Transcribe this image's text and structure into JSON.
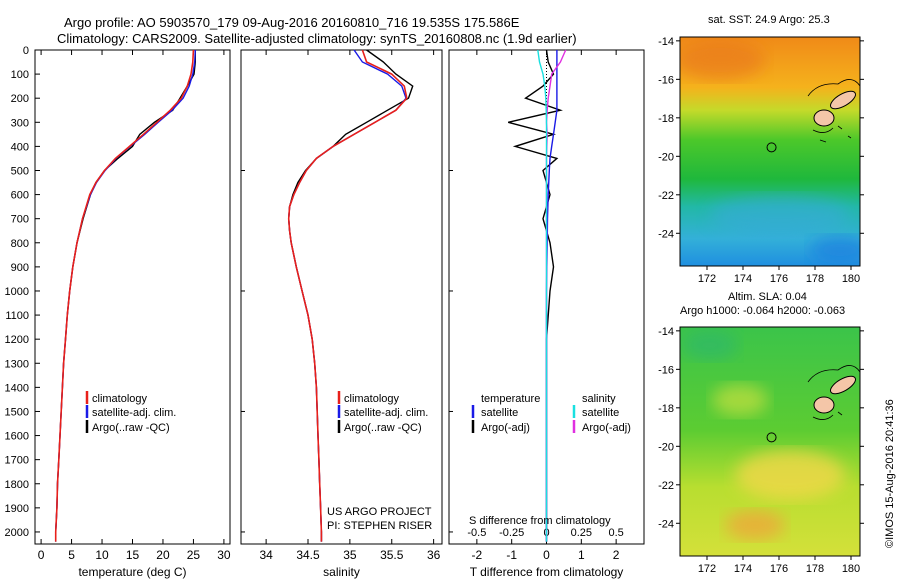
{
  "header": {
    "title_line1": "Argo profile: AO 5903570_179 09-Aug-2016 20160810_716 19.535S 175.586E",
    "title_line2": "Climatology: CARS2009. Satellite-adjusted climatology: synTS_20160808.nc (1.9d earlier)"
  },
  "credit": {
    "project": "US ARGO PROJECT",
    "pi": "PI: STEPHEN RISER",
    "stamp": "©IMOS 15-Aug-2016 20:41:36"
  },
  "colors": {
    "climatology": "#e8201b",
    "satellite": "#1a1ae6",
    "argo": "#000000",
    "sat_salinity": "#19e0e0",
    "argo_salinity": "#e030e0"
  },
  "chart_data": [
    {
      "type": "line",
      "xlabel": "temperature (deg C)",
      "ylabel": "",
      "xlim": [
        -1,
        31
      ],
      "ylim": [
        2050,
        0
      ],
      "xticks": [
        0,
        5,
        10,
        15,
        20,
        25,
        30
      ],
      "yticks": [
        0,
        100,
        200,
        300,
        400,
        500,
        600,
        700,
        800,
        900,
        1000,
        1100,
        1200,
        1300,
        1400,
        1500,
        1600,
        1700,
        1800,
        1900,
        2000
      ],
      "legend": [
        "climatology",
        "satellite-adj. clim.",
        "Argo(..raw -QC)"
      ],
      "depth": [
        0,
        50,
        100,
        150,
        200,
        250,
        300,
        350,
        400,
        450,
        500,
        550,
        600,
        700,
        800,
        900,
        1000,
        1100,
        1200,
        1300,
        1400,
        1500,
        1600,
        1700,
        1800,
        1900,
        2000,
        2040
      ],
      "series": [
        {
          "name": "climatology",
          "values": [
            25.0,
            24.9,
            24.6,
            24.0,
            23.0,
            21.2,
            19.0,
            16.8,
            14.5,
            12.2,
            10.4,
            9.0,
            8.0,
            6.8,
            5.9,
            5.2,
            4.7,
            4.3,
            4.0,
            3.7,
            3.5,
            3.3,
            3.1,
            2.9,
            2.7,
            2.6,
            2.4,
            2.4
          ]
        },
        {
          "name": "satellite-adj. clim.",
          "values": [
            25.3,
            25.2,
            24.9,
            24.3,
            23.3,
            21.5,
            19.2,
            17.0,
            14.6,
            12.3,
            10.5,
            9.1,
            8.1,
            6.8,
            5.9,
            5.2,
            4.7,
            4.3,
            4.0,
            3.7,
            3.5,
            3.3,
            3.1,
            2.9,
            2.7,
            2.6,
            2.4,
            2.4
          ]
        },
        {
          "name": "Argo(..raw -QC)",
          "values": [
            25.3,
            25.3,
            25.1,
            24.0,
            22.8,
            21.6,
            18.6,
            16.2,
            15.0,
            12.6,
            10.4,
            9.0,
            8.1,
            6.9,
            5.9,
            5.2,
            4.7,
            4.3,
            4.0,
            3.7,
            3.5,
            3.3,
            3.1,
            2.9,
            2.7,
            2.6,
            2.4,
            2.4
          ]
        }
      ]
    },
    {
      "type": "line",
      "xlabel": "salinity",
      "xlim": [
        33.7,
        36.1
      ],
      "ylim": [
        2050,
        0
      ],
      "xticks": [
        34,
        34.5,
        35,
        35.5,
        36
      ],
      "legend": [
        "climatology",
        "satellite-adj. clim.",
        "Argo(..raw -QC)"
      ],
      "depth": [
        0,
        50,
        100,
        150,
        200,
        250,
        300,
        350,
        400,
        450,
        500,
        550,
        600,
        650,
        700,
        750,
        800,
        900,
        1000,
        1100,
        1200,
        1300,
        1400,
        1500,
        1600,
        1700,
        1800,
        1900,
        2000,
        2040
      ],
      "series": [
        {
          "name": "climatology",
          "values": [
            35.15,
            35.2,
            35.5,
            35.65,
            35.68,
            35.55,
            35.3,
            35.05,
            34.8,
            34.6,
            34.48,
            34.4,
            34.33,
            34.28,
            34.27,
            34.28,
            34.3,
            34.36,
            34.43,
            34.5,
            34.55,
            34.58,
            34.6,
            34.61,
            34.62,
            34.63,
            34.64,
            34.65,
            34.66,
            34.66
          ]
        },
        {
          "name": "satellite-adj. clim.",
          "values": [
            35.05,
            35.15,
            35.45,
            35.62,
            35.67,
            35.55,
            35.3,
            35.05,
            34.8,
            34.6,
            34.48,
            34.4,
            34.33,
            34.28,
            34.27,
            34.28,
            34.3,
            34.36,
            34.43,
            34.5,
            34.55,
            34.58,
            34.6,
            34.61,
            34.62,
            34.63,
            34.64,
            34.65,
            34.66,
            34.66
          ]
        },
        {
          "name": "Argo(..raw -QC)",
          "values": [
            35.2,
            35.4,
            35.55,
            35.75,
            35.7,
            35.45,
            35.2,
            34.95,
            34.8,
            34.6,
            34.47,
            34.38,
            34.32,
            34.28,
            34.27,
            34.28,
            34.3,
            34.36,
            34.43,
            34.5,
            34.55,
            34.58,
            34.6,
            34.61,
            34.62,
            34.63,
            34.64,
            34.65,
            34.66,
            34.66
          ]
        }
      ]
    },
    {
      "type": "line",
      "xlabel": "T difference from climatology",
      "top_axis_label": "S difference from climatology",
      "xlim": [
        -2.8,
        2.8
      ],
      "ylim": [
        2050,
        0
      ],
      "xticks": [
        -2,
        -1,
        0,
        1,
        2
      ],
      "top_xticks": [
        "-0.5",
        "-0.25",
        "0",
        "0.25",
        "0.5"
      ],
      "legend_headers": [
        "temperature",
        "salinity"
      ],
      "legend": [
        "satellite",
        "Argo(-adj)",
        "satellite",
        "Argo(-adj)"
      ],
      "depth": [
        0,
        50,
        100,
        150,
        200,
        250,
        300,
        350,
        400,
        450,
        500,
        600,
        700,
        800,
        900,
        1000,
        1200,
        1400,
        1600,
        1800,
        2000,
        2040
      ],
      "series": [
        {
          "name": "temperature satellite",
          "values": [
            0.3,
            0.3,
            0.3,
            0.3,
            0.3,
            0.3,
            0.25,
            0.2,
            0.15,
            0.1,
            0.08,
            0.05,
            0.03,
            0.02,
            0.01,
            0.0,
            0.0,
            0.0,
            0.0,
            0.0,
            0.0,
            0.0
          ]
        },
        {
          "name": "temperature Argo(-adj)",
          "values": [
            0.0,
            0.05,
            0.2,
            -0.1,
            -0.6,
            0.4,
            -1.1,
            0.2,
            -0.9,
            0.3,
            -0.1,
            0.1,
            -0.1,
            0.1,
            0.2,
            0.1,
            0.0,
            0.0,
            0.0,
            0.0,
            0.0,
            0.0
          ]
        },
        {
          "name": "salinity satellite",
          "values": [
            -0.25,
            -0.2,
            -0.1,
            -0.05,
            -0.02,
            -0.01,
            0.0,
            0.0,
            0.0,
            0.0,
            0.0,
            0.0,
            0.0,
            0.0,
            0.0,
            0.0,
            0.0,
            0.0,
            0.0,
            0.0,
            0.0,
            0.0
          ]
        },
        {
          "name": "salinity Argo(-adj)",
          "values": [
            0.55,
            0.4,
            0.15,
            0.1,
            0.05,
            0.02,
            0.0,
            0.02,
            0.01,
            0.0,
            0.0,
            0.0,
            0.0,
            0.0,
            0.0,
            0.0,
            0.0,
            0.0,
            0.0,
            0.0,
            0.0,
            0.0
          ]
        }
      ]
    },
    {
      "type": "heatmap",
      "title": "sat. SST: 24.9 Argo: 25.3",
      "xlim": [
        170.5,
        180.5
      ],
      "ylim": [
        -25.7,
        -13.8
      ],
      "xticks": [
        172,
        174,
        176,
        178,
        180
      ],
      "yticks": [
        -14,
        -16,
        -18,
        -20,
        -22,
        -24
      ],
      "argo_position": {
        "lon": 175.586,
        "lat": -19.535
      }
    },
    {
      "type": "heatmap",
      "title": "Altim. SLA: 0.04",
      "subtitle": "Argo h1000: -0.064 h2000: -0.063",
      "xlim": [
        170.5,
        180.5
      ],
      "ylim": [
        -25.7,
        -13.8
      ],
      "xticks": [
        172,
        174,
        176,
        178,
        180
      ],
      "yticks": [
        -14,
        -16,
        -18,
        -20,
        -22,
        -24
      ],
      "argo_position": {
        "lon": 175.586,
        "lat": -19.535
      }
    }
  ]
}
